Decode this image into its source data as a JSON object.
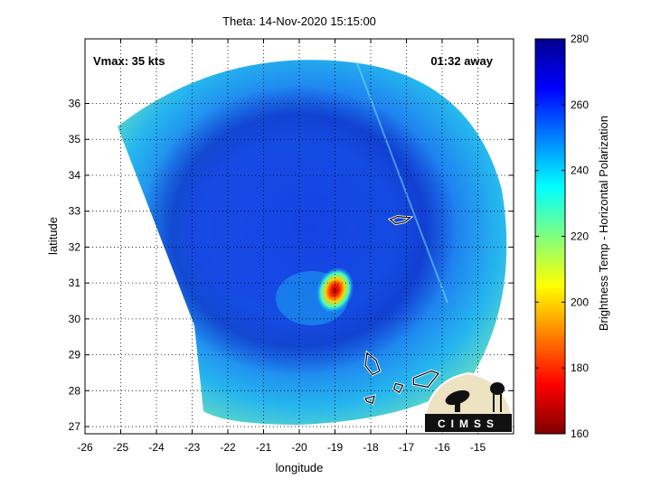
{
  "chart_data": {
    "type": "heatmap",
    "title": "Theta: 14-Nov-2020 15:15:00",
    "xlabel": "longitude",
    "ylabel": "latitude",
    "xlim": [
      -26,
      -14
    ],
    "ylim": [
      26.8,
      37.8
    ],
    "xticks": [
      -26,
      -25,
      -24,
      -23,
      -22,
      -21,
      -20,
      -19,
      -18,
      -17,
      -16,
      -15
    ],
    "yticks": [
      27,
      28,
      29,
      30,
      31,
      32,
      33,
      34,
      35,
      36
    ],
    "grid": true,
    "annotations": {
      "vmax": "Vmax: 35 kts",
      "away": "01:32 away"
    },
    "swath_center": {
      "lon": -19.8,
      "lat": 31.2
    },
    "storm_center": {
      "lon": -19.0,
      "lat": 30.8
    },
    "coastline_outlines": [
      {
        "name": "island-1",
        "points": [
          [
            -17.45,
            32.77
          ],
          [
            -17.25,
            32.85
          ],
          [
            -16.9,
            32.82
          ],
          [
            -17.05,
            32.7
          ],
          [
            -17.3,
            32.65
          ]
        ]
      },
      {
        "name": "island-2",
        "points": [
          [
            -18.1,
            29.05
          ],
          [
            -17.85,
            28.85
          ],
          [
            -17.75,
            28.55
          ],
          [
            -17.95,
            28.45
          ],
          [
            -18.15,
            28.7
          ]
        ]
      },
      {
        "name": "island-3",
        "points": [
          [
            -17.3,
            28.2
          ],
          [
            -17.1,
            28.15
          ],
          [
            -17.2,
            27.95
          ],
          [
            -17.35,
            28.05
          ]
        ]
      },
      {
        "name": "island-4",
        "points": [
          [
            -16.8,
            28.35
          ],
          [
            -16.3,
            28.55
          ],
          [
            -16.1,
            28.48
          ],
          [
            -16.4,
            28.1
          ],
          [
            -16.8,
            28.18
          ]
        ]
      },
      {
        "name": "island-5",
        "points": [
          [
            -18.15,
            27.78
          ],
          [
            -17.9,
            27.85
          ],
          [
            -17.95,
            27.65
          ],
          [
            -18.1,
            27.7
          ]
        ]
      }
    ],
    "colorbar": {
      "label": "Brightness Temp - Horizontal Polarization",
      "range": [
        160,
        280
      ],
      "ticks": [
        160,
        180,
        200,
        220,
        240,
        260,
        280
      ],
      "stops": [
        "#7f0000",
        "#ff0000",
        "#ff8000",
        "#ffff00",
        "#80ff80",
        "#00ffff",
        "#0080ff",
        "#0000ff",
        "#00008f"
      ]
    }
  },
  "logo": {
    "text": "CIMSS"
  }
}
